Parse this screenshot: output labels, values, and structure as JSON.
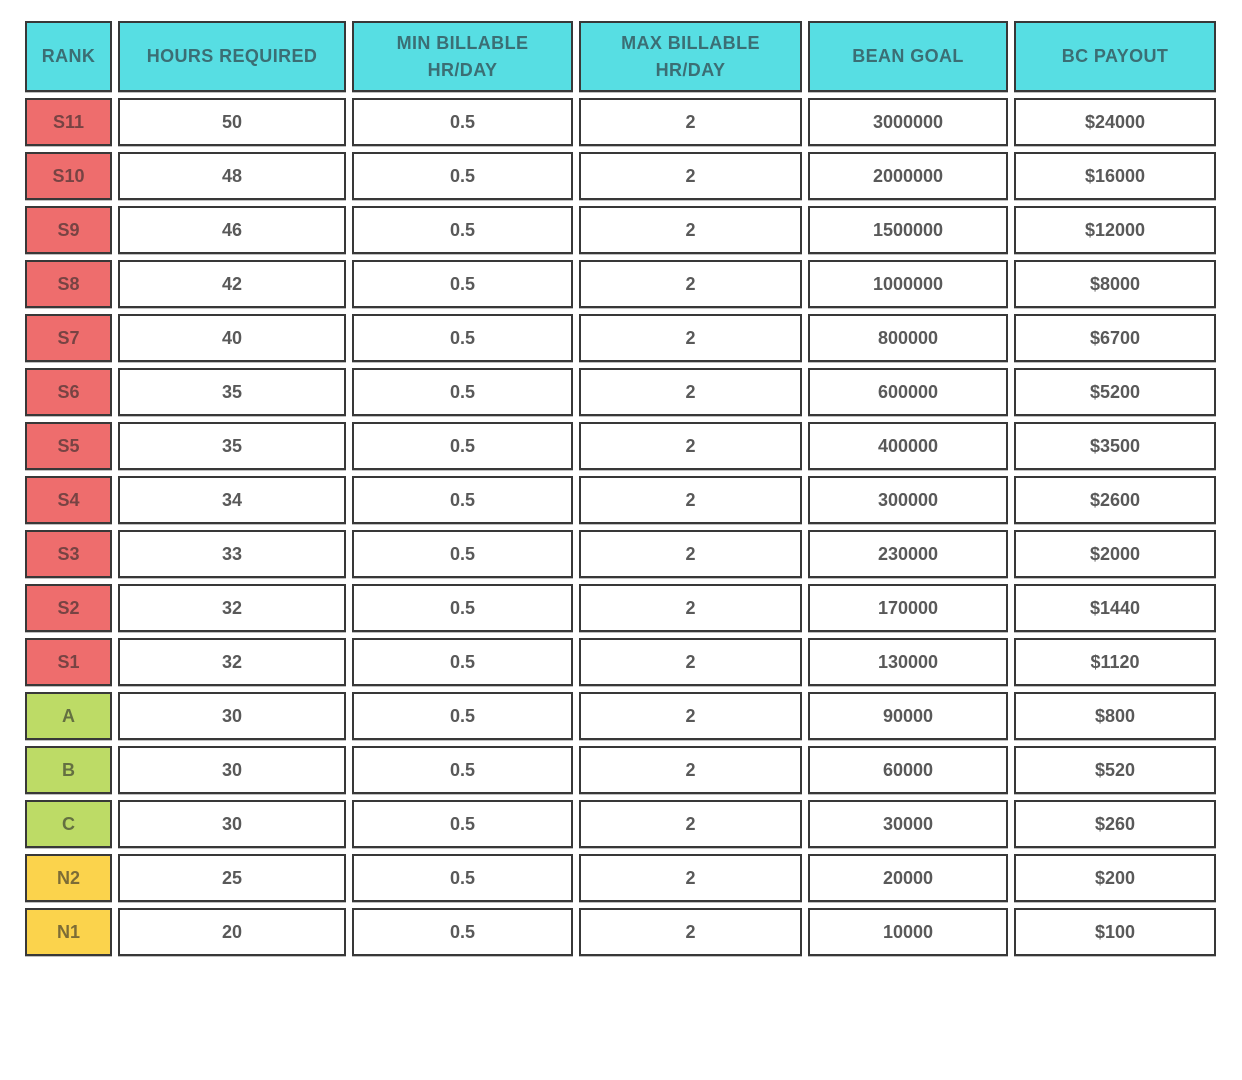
{
  "page": {
    "background": "#ffffff"
  },
  "colors": {
    "header_bg": "#57dee3",
    "header_text": "#3b6e74",
    "body_text": "#595959",
    "cell_border": "#383838",
    "tier_S": "#ee6d6d",
    "tier_A": "#bddb66",
    "tier_N": "#fbd34c"
  },
  "table": {
    "columns": [
      {
        "key": "rank",
        "label": "RANK"
      },
      {
        "key": "hours",
        "label": "HOURS REQUIRED"
      },
      {
        "key": "min",
        "label": "MIN BILLABLE\nHR/DAY"
      },
      {
        "key": "max",
        "label": "MAX BILLABLE\nHR/DAY"
      },
      {
        "key": "bean",
        "label": "BEAN GOAL"
      },
      {
        "key": "payout",
        "label": "BC PAYOUT"
      }
    ],
    "rows": [
      {
        "rank": "S11",
        "tier": "S",
        "hours": "50",
        "min": "0.5",
        "max": "2",
        "bean": "3000000",
        "payout": "$24000"
      },
      {
        "rank": "S10",
        "tier": "S",
        "hours": "48",
        "min": "0.5",
        "max": "2",
        "bean": "2000000",
        "payout": "$16000"
      },
      {
        "rank": "S9",
        "tier": "S",
        "hours": "46",
        "min": "0.5",
        "max": "2",
        "bean": "1500000",
        "payout": "$12000"
      },
      {
        "rank": "S8",
        "tier": "S",
        "hours": "42",
        "min": "0.5",
        "max": "2",
        "bean": "1000000",
        "payout": "$8000"
      },
      {
        "rank": "S7",
        "tier": "S",
        "hours": "40",
        "min": "0.5",
        "max": "2",
        "bean": "800000",
        "payout": "$6700"
      },
      {
        "rank": "S6",
        "tier": "S",
        "hours": "35",
        "min": "0.5",
        "max": "2",
        "bean": "600000",
        "payout": "$5200"
      },
      {
        "rank": "S5",
        "tier": "S",
        "hours": "35",
        "min": "0.5",
        "max": "2",
        "bean": "400000",
        "payout": "$3500"
      },
      {
        "rank": "S4",
        "tier": "S",
        "hours": "34",
        "min": "0.5",
        "max": "2",
        "bean": "300000",
        "payout": "$2600"
      },
      {
        "rank": "S3",
        "tier": "S",
        "hours": "33",
        "min": "0.5",
        "max": "2",
        "bean": "230000",
        "payout": "$2000"
      },
      {
        "rank": "S2",
        "tier": "S",
        "hours": "32",
        "min": "0.5",
        "max": "2",
        "bean": "170000",
        "payout": "$1440"
      },
      {
        "rank": "S1",
        "tier": "S",
        "hours": "32",
        "min": "0.5",
        "max": "2",
        "bean": "130000",
        "payout": "$1120"
      },
      {
        "rank": "A",
        "tier": "A",
        "hours": "30",
        "min": "0.5",
        "max": "2",
        "bean": "90000",
        "payout": "$800"
      },
      {
        "rank": "B",
        "tier": "A",
        "hours": "30",
        "min": "0.5",
        "max": "2",
        "bean": "60000",
        "payout": "$520"
      },
      {
        "rank": "C",
        "tier": "A",
        "hours": "30",
        "min": "0.5",
        "max": "2",
        "bean": "30000",
        "payout": "$260"
      },
      {
        "rank": "N2",
        "tier": "N",
        "hours": "25",
        "min": "0.5",
        "max": "2",
        "bean": "20000",
        "payout": "$200"
      },
      {
        "rank": "N1",
        "tier": "N",
        "hours": "20",
        "min": "0.5",
        "max": "2",
        "bean": "10000",
        "payout": "$100"
      }
    ]
  }
}
